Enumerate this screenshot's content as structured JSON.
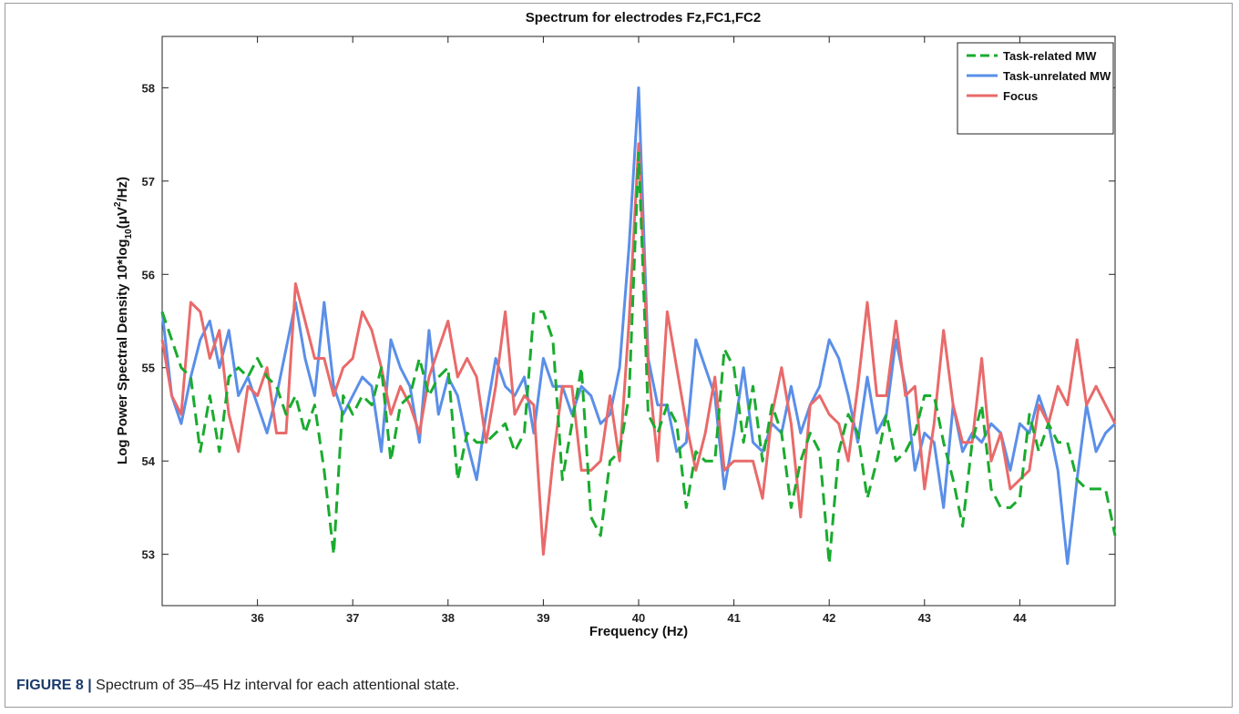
{
  "caption": {
    "label": "FIGURE 8 |",
    "text": " Spectrum of 35–45 Hz interval for each attentional state."
  },
  "chart_data": {
    "type": "line",
    "title": "Spectrum for electrodes Fz,FC1,FC2",
    "xlabel": "Frequency (Hz)",
    "ylabel_parts": [
      "Log Power Spectral Density 10*log",
      "10",
      "(μV",
      "2",
      "/Hz)"
    ],
    "xlim": [
      35,
      45
    ],
    "ylim": [
      52.45,
      58.55
    ],
    "xticks": [
      36,
      37,
      38,
      39,
      40,
      41,
      42,
      43,
      44
    ],
    "yticks": [
      53,
      54,
      55,
      56,
      57,
      58
    ],
    "legend_position": "top-right",
    "x": [
      35.0,
      35.1,
      35.2,
      35.3,
      35.4,
      35.5,
      35.6,
      35.7,
      35.8,
      35.9,
      36.0,
      36.1,
      36.2,
      36.3,
      36.4,
      36.5,
      36.6,
      36.7,
      36.8,
      36.9,
      37.0,
      37.1,
      37.2,
      37.3,
      37.4,
      37.5,
      37.6,
      37.7,
      37.8,
      37.9,
      38.0,
      38.1,
      38.2,
      38.3,
      38.4,
      38.5,
      38.6,
      38.7,
      38.8,
      38.9,
      39.0,
      39.1,
      39.2,
      39.3,
      39.4,
      39.5,
      39.6,
      39.7,
      39.8,
      39.9,
      40.0,
      40.1,
      40.2,
      40.3,
      40.4,
      40.5,
      40.6,
      40.7,
      40.8,
      40.9,
      41.0,
      41.1,
      41.2,
      41.3,
      41.4,
      41.5,
      41.6,
      41.7,
      41.8,
      41.9,
      42.0,
      42.1,
      42.2,
      42.3,
      42.4,
      42.5,
      42.6,
      42.7,
      42.8,
      42.9,
      43.0,
      43.1,
      43.2,
      43.3,
      43.4,
      43.5,
      43.6,
      43.7,
      43.8,
      43.9,
      44.0,
      44.1,
      44.2,
      44.3,
      44.4,
      44.5,
      44.6,
      44.7,
      44.8,
      44.9,
      45.0
    ],
    "series": [
      {
        "name": "Task-related MW",
        "color": "#1aab2e",
        "dash": true,
        "values": [
          55.6,
          55.3,
          55.0,
          54.9,
          54.1,
          54.7,
          54.1,
          54.9,
          55.0,
          54.9,
          55.1,
          54.9,
          54.8,
          54.5,
          54.7,
          54.3,
          54.6,
          53.9,
          53.0,
          54.7,
          54.5,
          54.7,
          54.6,
          55.0,
          54.0,
          54.6,
          54.7,
          55.1,
          54.7,
          54.9,
          55.0,
          53.8,
          54.3,
          54.2,
          54.2,
          54.3,
          54.4,
          54.1,
          54.3,
          55.6,
          55.6,
          55.3,
          53.8,
          54.4,
          55.0,
          53.4,
          53.2,
          54.0,
          54.1,
          54.7,
          57.3,
          54.5,
          54.3,
          54.6,
          54.4,
          53.5,
          54.1,
          54.0,
          54.0,
          55.2,
          55.0,
          54.2,
          54.8,
          54.0,
          54.6,
          54.3,
          53.5,
          54.0,
          54.3,
          54.1,
          52.9,
          54.1,
          54.5,
          54.3,
          53.6,
          54.0,
          54.5,
          54.0,
          54.1,
          54.3,
          54.7,
          54.7,
          54.2,
          53.8,
          53.3,
          54.2,
          54.6,
          53.7,
          53.5,
          53.5,
          53.6,
          54.5,
          54.1,
          54.4,
          54.2,
          54.2,
          53.8,
          53.7,
          53.7,
          53.7,
          53.2
        ]
      },
      {
        "name": "Task-unrelated MW",
        "color": "#5a8fe8",
        "dash": false,
        "values": [
          55.6,
          54.7,
          54.4,
          54.9,
          55.3,
          55.5,
          55.0,
          55.4,
          54.7,
          54.9,
          54.6,
          54.3,
          54.7,
          55.2,
          55.7,
          55.1,
          54.7,
          55.7,
          54.8,
          54.5,
          54.7,
          54.9,
          54.8,
          54.1,
          55.3,
          55.0,
          54.8,
          54.2,
          55.4,
          54.5,
          54.9,
          54.7,
          54.2,
          53.8,
          54.5,
          55.1,
          54.8,
          54.7,
          54.9,
          54.3,
          55.1,
          54.8,
          54.8,
          54.5,
          54.8,
          54.7,
          54.4,
          54.5,
          55.0,
          56.3,
          58.0,
          55.1,
          54.6,
          54.6,
          54.1,
          54.2,
          55.3,
          55.0,
          54.7,
          53.7,
          54.3,
          55.0,
          54.2,
          54.1,
          54.4,
          54.3,
          54.8,
          54.3,
          54.6,
          54.8,
          55.3,
          55.1,
          54.7,
          54.2,
          54.9,
          54.3,
          54.5,
          55.3,
          54.8,
          53.9,
          54.3,
          54.2,
          53.5,
          54.6,
          54.1,
          54.3,
          54.2,
          54.4,
          54.3,
          53.9,
          54.4,
          54.3,
          54.7,
          54.4,
          53.9,
          52.9,
          53.8,
          54.6,
          54.1,
          54.3,
          54.4
        ]
      },
      {
        "name": "Focus",
        "color": "#e96a6a",
        "dash": false,
        "values": [
          55.3,
          54.7,
          54.5,
          55.7,
          55.6,
          55.1,
          55.4,
          54.5,
          54.1,
          54.8,
          54.7,
          55.0,
          54.3,
          54.3,
          55.9,
          55.5,
          55.1,
          55.1,
          54.7,
          55.0,
          55.1,
          55.6,
          55.4,
          55.0,
          54.5,
          54.8,
          54.6,
          54.3,
          54.9,
          55.2,
          55.5,
          54.9,
          55.1,
          54.9,
          54.2,
          54.8,
          55.6,
          54.5,
          54.7,
          54.6,
          53.0,
          54.0,
          54.8,
          54.8,
          53.9,
          53.9,
          54.0,
          54.7,
          54.0,
          55.5,
          57.4,
          55.0,
          54.0,
          55.6,
          55.0,
          54.4,
          53.9,
          54.3,
          54.9,
          53.9,
          54.0,
          54.0,
          54.0,
          53.6,
          54.5,
          55.0,
          54.4,
          53.4,
          54.6,
          54.7,
          54.5,
          54.4,
          54.0,
          54.8,
          55.7,
          54.7,
          54.7,
          55.5,
          54.7,
          54.8,
          53.7,
          54.4,
          55.4,
          54.6,
          54.2,
          54.2,
          55.1,
          54.0,
          54.3,
          53.7,
          53.8,
          53.9,
          54.6,
          54.4,
          54.8,
          54.6,
          55.3,
          54.6,
          54.8,
          54.6,
          54.4
        ]
      }
    ]
  }
}
